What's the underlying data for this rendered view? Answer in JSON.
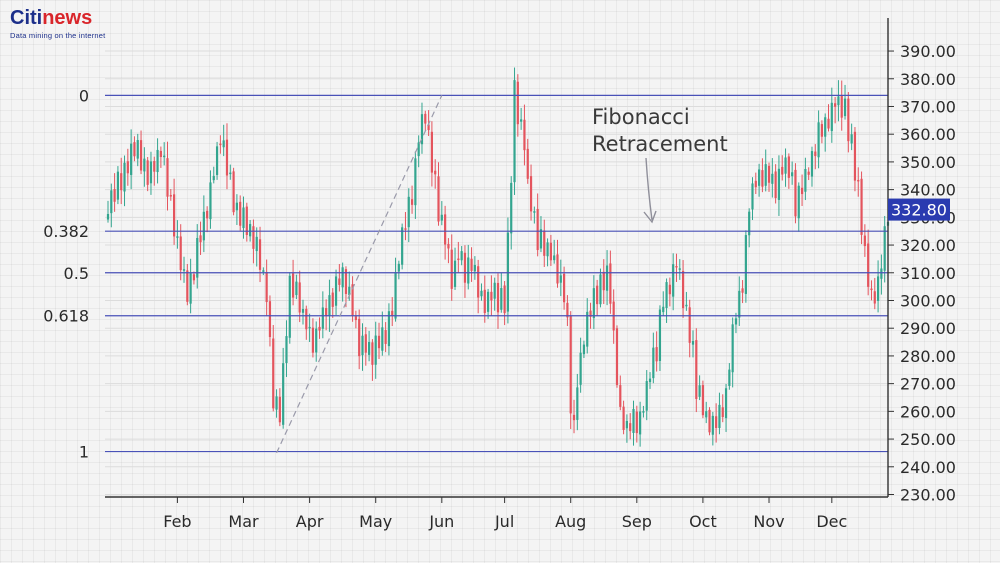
{
  "logo": {
    "brand_part1": "Citi",
    "brand_part2": "news",
    "tagline": "Data mining on the internet"
  },
  "colors": {
    "up": "#33a58f",
    "down": "#e4545d",
    "fib_line": "#4a52b8",
    "price_tag": "#2a3bb0",
    "background": "#f4f4f4",
    "trend_line": "#9a9aaa"
  },
  "chart_data": {
    "type": "candlestick",
    "title": "",
    "annotation": "Fibonacci\nRetracement",
    "current_price": "332.80",
    "ylim": [
      230,
      395
    ],
    "y_ticks": [
      "230.00",
      "240.00",
      "250.00",
      "260.00",
      "270.00",
      "280.00",
      "290.00",
      "300.00",
      "310.00",
      "320.00",
      "330.00",
      "340.00",
      "350.00",
      "360.00",
      "370.00",
      "380.00",
      "390.00"
    ],
    "x_ticks": [
      {
        "label": "Feb",
        "index": 21
      },
      {
        "label": "Mar",
        "index": 41
      },
      {
        "label": "Apr",
        "index": 61
      },
      {
        "label": "May",
        "index": 81
      },
      {
        "label": "Jun",
        "index": 101
      },
      {
        "label": "Jul",
        "index": 120
      },
      {
        "label": "Aug",
        "index": 140
      },
      {
        "label": "Sep",
        "index": 160
      },
      {
        "label": "Oct",
        "index": 180
      },
      {
        "label": "Nov",
        "index": 200
      },
      {
        "label": "Dec",
        "index": 219
      }
    ],
    "fibonacci_levels": [
      {
        "label": "0",
        "price": 374
      },
      {
        "label": "0.382",
        "price": 325
      },
      {
        "label": "0.5",
        "price": 310
      },
      {
        "label": "0.618",
        "price": 294.5
      },
      {
        "label": "1",
        "price": 245.5
      }
    ],
    "trend_line": [
      {
        "index": 51,
        "price": 245
      },
      {
        "index": 101,
        "price": 374
      }
    ],
    "count": 237,
    "keypoints": [
      [
        0,
        335
      ],
      [
        6,
        348
      ],
      [
        8,
        356
      ],
      [
        12,
        346
      ],
      [
        16,
        354
      ],
      [
        18,
        342
      ],
      [
        20,
        325
      ],
      [
        22,
        315
      ],
      [
        24,
        302
      ],
      [
        26,
        312
      ],
      [
        28,
        324
      ],
      [
        30,
        334
      ],
      [
        32,
        347
      ],
      [
        34,
        359
      ],
      [
        36,
        350
      ],
      [
        38,
        336
      ],
      [
        40,
        330
      ],
      [
        42,
        328
      ],
      [
        44,
        322
      ],
      [
        46,
        315
      ],
      [
        48,
        303
      ],
      [
        49,
        285
      ],
      [
        50,
        265
      ],
      [
        52,
        260
      ],
      [
        54,
        290
      ],
      [
        55,
        306
      ],
      [
        57,
        302
      ],
      [
        60,
        292
      ],
      [
        62,
        285
      ],
      [
        65,
        295
      ],
      [
        68,
        302
      ],
      [
        70,
        309
      ],
      [
        72,
        306
      ],
      [
        74,
        296
      ],
      [
        76,
        283
      ],
      [
        78,
        285
      ],
      [
        80,
        280
      ],
      [
        82,
        285
      ],
      [
        84,
        289
      ],
      [
        86,
        296
      ],
      [
        88,
        317
      ],
      [
        90,
        330
      ],
      [
        92,
        337
      ],
      [
        93,
        347
      ],
      [
        94,
        362
      ],
      [
        96,
        366
      ],
      [
        98,
        350
      ],
      [
        100,
        332
      ],
      [
        102,
        322
      ],
      [
        104,
        306
      ],
      [
        106,
        318
      ],
      [
        108,
        309
      ],
      [
        110,
        313
      ],
      [
        112,
        304
      ],
      [
        114,
        297
      ],
      [
        116,
        304
      ],
      [
        118,
        300
      ],
      [
        120,
        299
      ],
      [
        121,
        320
      ],
      [
        122,
        345
      ],
      [
        123,
        378
      ],
      [
        124,
        366
      ],
      [
        126,
        358
      ],
      [
        127,
        340
      ],
      [
        128,
        336
      ],
      [
        130,
        322
      ],
      [
        132,
        320
      ],
      [
        134,
        318
      ],
      [
        136,
        310
      ],
      [
        138,
        302
      ],
      [
        139,
        290
      ],
      [
        140,
        262
      ],
      [
        141,
        254
      ],
      [
        142,
        271
      ],
      [
        144,
        286
      ],
      [
        146,
        299
      ],
      [
        148,
        302
      ],
      [
        150,
        308
      ],
      [
        151,
        310
      ],
      [
        152,
        302
      ],
      [
        153,
        286
      ],
      [
        155,
        257
      ],
      [
        157,
        255
      ],
      [
        159,
        258
      ],
      [
        160,
        254
      ],
      [
        162,
        262
      ],
      [
        164,
        276
      ],
      [
        166,
        282
      ],
      [
        167,
        294
      ],
      [
        168,
        300
      ],
      [
        170,
        307
      ],
      [
        172,
        314
      ],
      [
        174,
        300
      ],
      [
        176,
        287
      ],
      [
        177,
        283
      ],
      [
        178,
        268
      ],
      [
        180,
        261
      ],
      [
        181,
        256
      ],
      [
        183,
        254
      ],
      [
        185,
        259
      ],
      [
        187,
        265
      ],
      [
        188,
        279
      ],
      [
        190,
        296
      ],
      [
        192,
        307
      ],
      [
        193,
        322
      ],
      [
        194,
        334
      ],
      [
        196,
        344
      ],
      [
        198,
        345
      ],
      [
        200,
        346
      ],
      [
        202,
        340
      ],
      [
        204,
        349
      ],
      [
        206,
        349
      ],
      [
        208,
        334
      ],
      [
        210,
        343
      ],
      [
        212,
        347
      ],
      [
        214,
        355
      ],
      [
        216,
        364
      ],
      [
        218,
        365
      ],
      [
        220,
        372
      ],
      [
        221,
        369
      ],
      [
        223,
        368
      ],
      [
        225,
        355
      ],
      [
        227,
        340
      ],
      [
        229,
        315
      ],
      [
        231,
        300
      ],
      [
        233,
        305
      ],
      [
        235,
        325
      ],
      [
        236,
        333
      ]
    ]
  }
}
